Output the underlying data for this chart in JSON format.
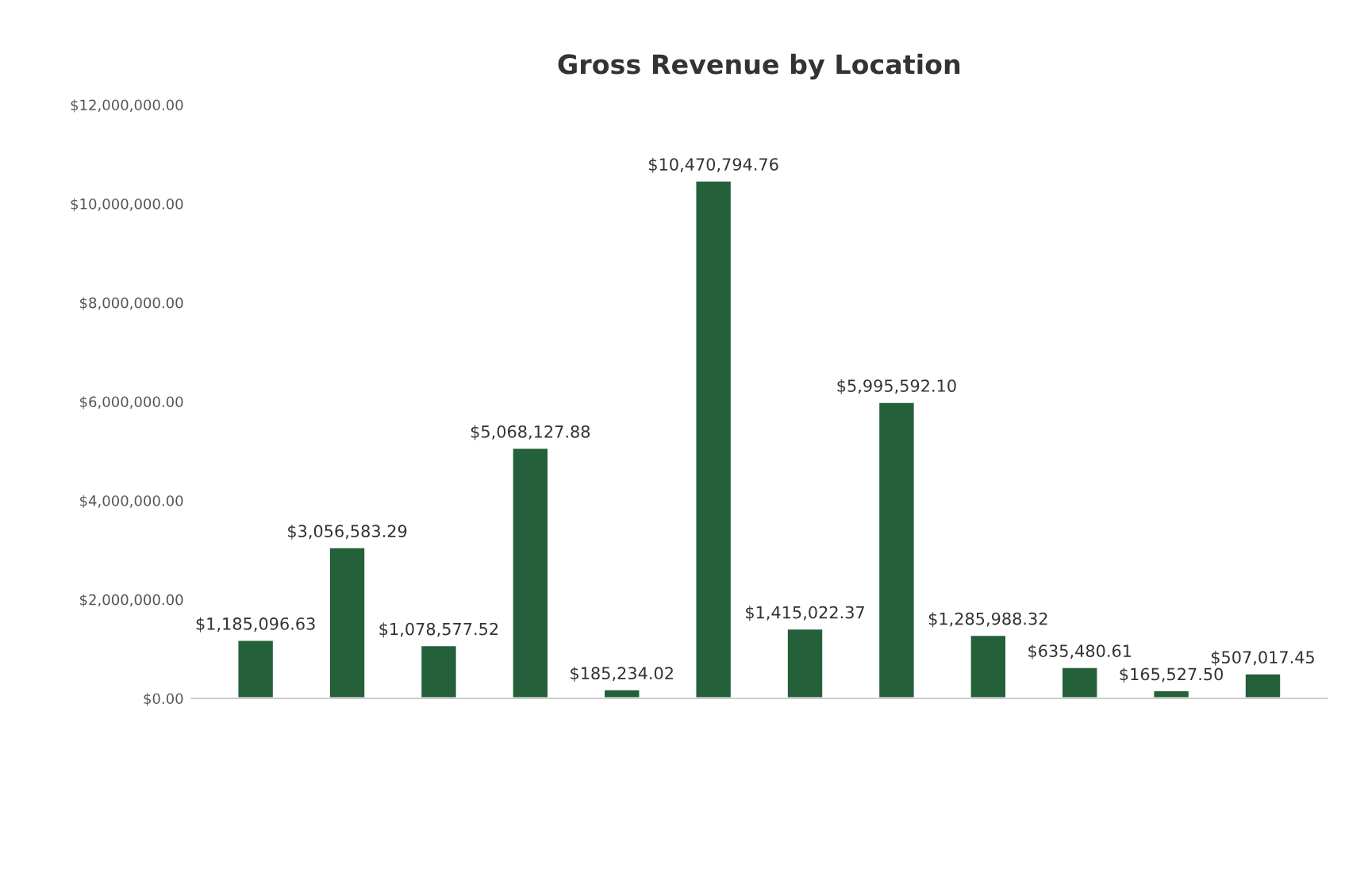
{
  "chart_data": {
    "type": "bar",
    "title": "Gross Revenue by Location",
    "categories": [
      null,
      null,
      null,
      null,
      null,
      null,
      null,
      null,
      null,
      null,
      null,
      null
    ],
    "values": [
      1185096.63,
      3056583.29,
      1078577.52,
      5068127.88,
      185234.02,
      10470794.76,
      1415022.37,
      5995592.1,
      1285988.32,
      635480.61,
      165527.5,
      507017.45
    ],
    "value_labels": [
      "$1,185,096.63",
      "$3,056,583.29",
      "$1,078,577.52",
      "$5,068,127.88",
      "$185,234.02",
      "$10,470,794.76",
      "$1,415,022.37",
      "$5,995,592.10",
      "$1,285,988.32",
      "$635,480.61",
      "$165,527.50",
      "$507,017.45"
    ],
    "color": "#24603a",
    "ylim": [
      0,
      12000000
    ],
    "yticks": [
      {
        "value": 0,
        "label": "$0.00"
      },
      {
        "value": 2000000,
        "label": "$2,000,000.00"
      },
      {
        "value": 4000000,
        "label": "$4,000,000.00"
      },
      {
        "value": 6000000,
        "label": "$6,000,000.00"
      },
      {
        "value": 8000000,
        "label": "$8,000,000.00"
      },
      {
        "value": 10000000,
        "label": "$10,000,000.00"
      },
      {
        "value": 12000000,
        "label": "$12,000,000.00"
      }
    ],
    "grid": false,
    "legend": false
  }
}
